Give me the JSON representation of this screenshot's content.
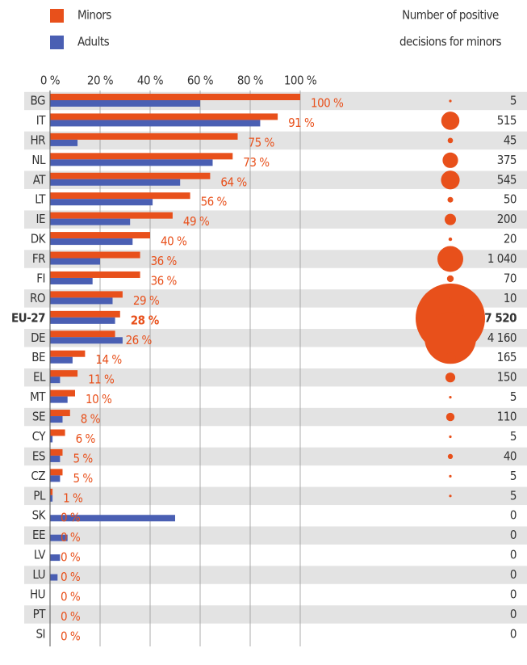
{
  "chart_data": {
    "type": "bar",
    "orientation": "horizontal",
    "categories": [
      "BG",
      "IT",
      "HR",
      "NL",
      "AT",
      "LT",
      "IE",
      "DK",
      "FR",
      "FI",
      "RO",
      "EU-27",
      "DE",
      "BE",
      "EL",
      "MT",
      "SE",
      "CY",
      "ES",
      "CZ",
      "PL",
      "SK",
      "EE",
      "LV",
      "LU",
      "HU",
      "PT",
      "SI"
    ],
    "highlight_index": 11,
    "series": [
      {
        "name": "Minors",
        "color": "#e8501b",
        "values": [
          100,
          91,
          75,
          73,
          64,
          56,
          49,
          40,
          36,
          36,
          29,
          28,
          26,
          14,
          11,
          10,
          8,
          6,
          5,
          5,
          1,
          0,
          0,
          0,
          0,
          0,
          0,
          0
        ],
        "value_labels": [
          "100 %",
          "91 %",
          "75 %",
          "73 %",
          "64 %",
          "56 %",
          "49 %",
          "40 %",
          "36 %",
          "36 %",
          "29 %",
          "28 %",
          "26 %",
          "14 %",
          "11 %",
          "10 %",
          "8 %",
          "6 %",
          "5 %",
          "5 %",
          "1 %",
          "0 %",
          "0 %",
          "0 %",
          "0 %",
          "0 %",
          "0 %",
          "0 %"
        ]
      },
      {
        "name": "Adults",
        "color": "#4a5fb3",
        "values": [
          60,
          84,
          11,
          65,
          52,
          41,
          32,
          33,
          20,
          17,
          25,
          26,
          29,
          9,
          4,
          7,
          5,
          1,
          4,
          4,
          1,
          50,
          7,
          4,
          3,
          0,
          0,
          0
        ]
      }
    ],
    "xlim": [
      0,
      100
    ],
    "xticks": [
      {
        "value": 0,
        "label": "0 %"
      },
      {
        "value": 20,
        "label": "20 %"
      },
      {
        "value": 40,
        "label": "40 %"
      },
      {
        "value": 60,
        "label": "60 %"
      },
      {
        "value": 80,
        "label": "80 %"
      },
      {
        "value": 100,
        "label": "100 %"
      }
    ],
    "grid": true,
    "bubbles": {
      "title": [
        "Number of positive",
        "decisions for minors"
      ],
      "color": "#e8501b",
      "values": [
        5,
        515,
        45,
        375,
        545,
        50,
        200,
        20,
        1040,
        70,
        10,
        7520,
        4160,
        165,
        150,
        5,
        110,
        5,
        40,
        5,
        5,
        0,
        0,
        0,
        0,
        0,
        0,
        0
      ],
      "value_labels": [
        "5",
        "515",
        "45",
        "375",
        "545",
        "50",
        "200",
        "20",
        "1 040",
        "70",
        "10",
        "7 520",
        "4 160",
        "165",
        "150",
        "5",
        "110",
        "5",
        "40",
        "5",
        "5",
        "0",
        "0",
        "0",
        "0",
        "0",
        "0",
        "0"
      ]
    }
  }
}
